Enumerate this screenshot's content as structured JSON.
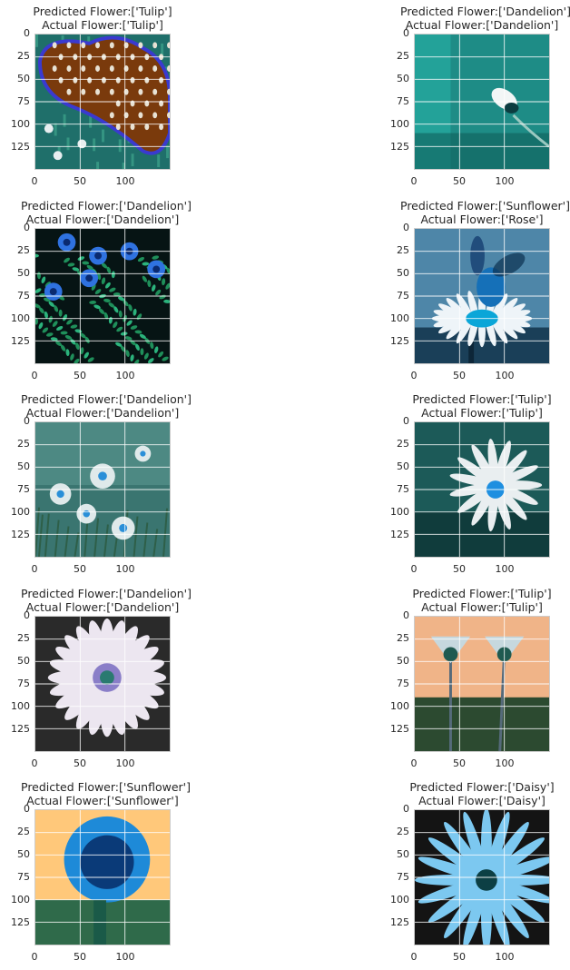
{
  "figure": {
    "panels": [
      {
        "predicted": "Predicted Flower:['Tulip']",
        "actual": "Actual Flower:['Tulip']",
        "image": "tulip-polka-dot-photo"
      },
      {
        "predicted": "Predicted Flower:['Dandelion']",
        "actual": "Actual Flower:['Dandelion']",
        "image": "single-white-bud-teal-photo"
      },
      {
        "predicted": "Predicted Flower:['Dandelion']",
        "actual": "Actual Flower:['Dandelion']",
        "image": "blue-sunflower-field-photo"
      },
      {
        "predicted": "Predicted Flower:['Sunflower']",
        "actual": "Actual Flower:['Rose']",
        "image": "fly-on-daisy-photo"
      },
      {
        "predicted": "Predicted Flower:['Dandelion']",
        "actual": "Actual Flower:['Dandelion']",
        "image": "small-daisies-teal-photo"
      },
      {
        "predicted": "Predicted Flower:['Tulip']",
        "actual": "Actual Flower:['Tulip']",
        "image": "white-daisy-blue-center-photo"
      },
      {
        "predicted": "Predicted Flower:['Dandelion']",
        "actual": "Actual Flower:['Dandelion']",
        "image": "pale-gerbera-photo"
      },
      {
        "predicted": "Predicted Flower:['Tulip']",
        "actual": "Actual Flower:['Tulip']",
        "image": "wilted-daisies-orange-sky-photo"
      },
      {
        "predicted": "Predicted Flower:['Sunflower']",
        "actual": "Actual Flower:['Sunflower']",
        "image": "blue-sunflower-orange-sky-photo"
      },
      {
        "predicted": "Predicted Flower:['Daisy']",
        "actual": "Actual Flower:['Daisy']",
        "image": "blue-daisy-dark-photo"
      }
    ]
  },
  "chart_data": {
    "type": "image-grid",
    "rows": 5,
    "cols": 2,
    "xticks": [
      "0",
      "50",
      "100"
    ],
    "yticks": [
      "0",
      "25",
      "50",
      "75",
      "100",
      "125"
    ],
    "xlim": [
      0,
      150
    ],
    "ylim": [
      150,
      0
    ],
    "grid": true
  }
}
